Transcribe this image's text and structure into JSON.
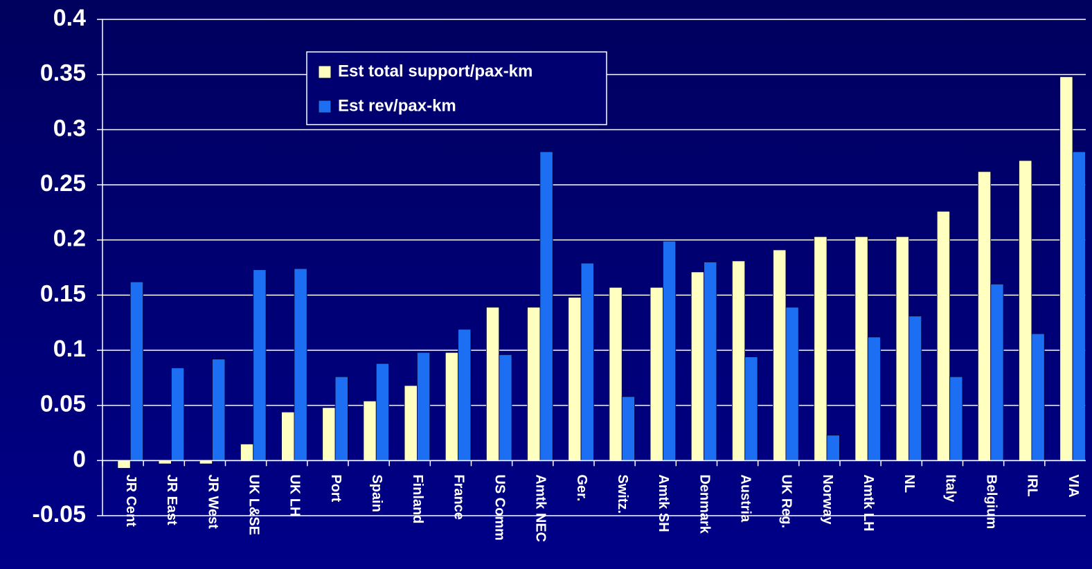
{
  "chart_data": {
    "type": "bar",
    "categories": [
      "JR Cent",
      "JR East",
      "JR West",
      "UK L&SE",
      "UK LH",
      "Port",
      "Spain",
      "Finland",
      "France",
      "US Comm",
      "Amtk NEC",
      "Ger.",
      "Switz.",
      "Amtk SH",
      "Denmark",
      "Austria",
      "UK Reg.",
      "Norway",
      "Amtk LH",
      "NL",
      "Italy",
      "Belgium",
      "IRL",
      "VIA"
    ],
    "series": [
      {
        "name": "Est total support/pax-km",
        "color": "#ffffc0",
        "values": [
          -0.007,
          -0.003,
          -0.003,
          0.015,
          0.044,
          0.048,
          0.054,
          0.068,
          0.098,
          0.139,
          0.139,
          0.148,
          0.157,
          0.157,
          0.171,
          0.181,
          0.191,
          0.203,
          0.203,
          0.203,
          0.226,
          0.262,
          0.272,
          0.348
        ]
      },
      {
        "name": "Est rev/pax-km",
        "color": "#1c6ef2",
        "values": [
          0.162,
          0.084,
          0.092,
          0.173,
          0.174,
          0.076,
          0.088,
          0.098,
          0.119,
          0.096,
          0.28,
          0.179,
          0.058,
          0.199,
          0.18,
          0.094,
          0.139,
          0.023,
          0.112,
          0.131,
          0.076,
          0.16,
          0.115,
          0.28
        ]
      }
    ],
    "ylim": [
      -0.05,
      0.4
    ],
    "yticks": [
      -0.05,
      0,
      0.05,
      0.1,
      0.15,
      0.2,
      0.25,
      0.3,
      0.35,
      0.4
    ],
    "grid": true,
    "legend": "top-left"
  }
}
